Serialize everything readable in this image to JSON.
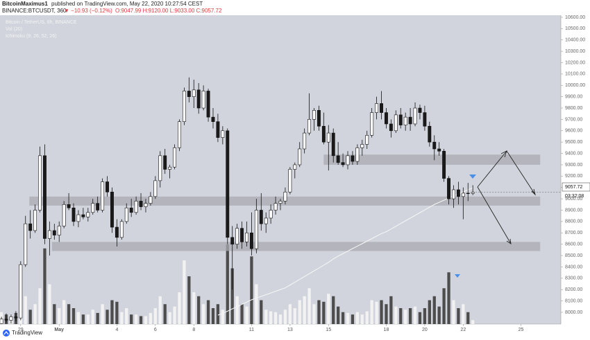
{
  "header": {
    "author": "BitcoinMaximus1",
    "published": "published on TradingView.com, May 22, 2020 10:27:54 CEST",
    "symbol": "BINANCE:BTCUSDT, 360",
    "change": "▼ −10.93 (−0.12%)",
    "ohlc": "O:9047.99 H:9120.00 L:9033.00 C:9057.72"
  },
  "footer": {
    "brand": "TradingView"
  },
  "chart_data": {
    "type": "candlestick",
    "legend": [
      "Bitcoin / TetherUS, 6h, BINANCE",
      "Vol (20)",
      "Ichimoku (9, 26, 52, 26)"
    ],
    "countdown": "03:32:08",
    "up_color": "#ffffff",
    "down_color": "#1a1a1a",
    "volume_up_color": "#f2f2f2",
    "volume_down_color": "#4d4d4d",
    "line_color": "#f5f5f5",
    "zone_color": "#a9abb1",
    "background": "#d1d4dc",
    "xlim": [
      -0.3,
      116.3
    ],
    "ylim": [
      7896,
      10618
    ],
    "vlim": [
      0,
      100
    ],
    "xticks": [
      {
        "value": 4,
        "label": "29"
      },
      {
        "value": 12,
        "label": "May"
      },
      {
        "value": 24,
        "label": "4"
      },
      {
        "value": 32,
        "label": "6"
      },
      {
        "value": 40,
        "label": "8"
      },
      {
        "value": 52,
        "label": "11"
      },
      {
        "value": 60,
        "label": "13"
      },
      {
        "value": 68,
        "label": "15"
      },
      {
        "value": 80,
        "label": "18"
      },
      {
        "value": 88,
        "label": "20"
      },
      {
        "value": 96,
        "label": "22"
      },
      {
        "value": 108,
        "label": "25"
      }
    ],
    "yticks": [
      {
        "value": 8000,
        "label": "8000.00"
      },
      {
        "value": 8100,
        "label": "8100.00"
      },
      {
        "value": 8200,
        "label": "8200.00"
      },
      {
        "value": 8300,
        "label": "8300.00"
      },
      {
        "value": 8400,
        "label": "8400.00"
      },
      {
        "value": 8500,
        "label": "8500.00"
      },
      {
        "value": 8600,
        "label": "8600.00"
      },
      {
        "value": 8700,
        "label": "8700.00"
      },
      {
        "value": 8800,
        "label": "8800.00"
      },
      {
        "value": 8900,
        "label": "8900.00"
      },
      {
        "value": 9000,
        "label": "9000.00"
      },
      {
        "value": 9100,
        "label": "9100.00"
      },
      {
        "value": 9200,
        "label": "9200.00"
      },
      {
        "value": 9300,
        "label": "9300.00"
      },
      {
        "value": 9400,
        "label": "9400.00"
      },
      {
        "value": 9500,
        "label": "9500.00"
      },
      {
        "value": 9600,
        "label": "9600.00"
      },
      {
        "value": 9700,
        "label": "9700.00"
      },
      {
        "value": 9800,
        "label": "9800.00"
      },
      {
        "value": 9900,
        "label": "9900.00"
      },
      {
        "value": 10000,
        "label": "10000.00"
      },
      {
        "value": 10100,
        "label": "10100.00"
      },
      {
        "value": 10200,
        "label": "10200.00"
      },
      {
        "value": 10300,
        "label": "10300.00"
      },
      {
        "value": 10400,
        "label": "10400.00"
      },
      {
        "value": 10500,
        "label": "10500.00"
      },
      {
        "value": 10600,
        "label": "10600.00"
      }
    ],
    "zones": [
      {
        "from": 9300,
        "to": 9390,
        "start": 67,
        "end": 112
      },
      {
        "from": 8940,
        "to": 9020,
        "start": 5.8,
        "end": 112
      },
      {
        "from": 8540,
        "to": 8620,
        "start": 10.5,
        "end": 112
      }
    ],
    "ohlc": [
      [
        7900,
        7960,
        7880,
        7940
      ],
      [
        7940,
        7990,
        7910,
        7930
      ],
      [
        7930,
        7980,
        7900,
        7960
      ],
      [
        7960,
        8010,
        7920,
        7950
      ],
      [
        7950,
        8450,
        7930,
        8420
      ],
      [
        8420,
        8850,
        8400,
        8780
      ],
      [
        8780,
        8900,
        8650,
        8720
      ],
      [
        8720,
        8950,
        8700,
        8900
      ],
      [
        8900,
        9460,
        8880,
        9380
      ],
      [
        9380,
        9480,
        8600,
        8650
      ],
      [
        8650,
        8800,
        8500,
        8720
      ],
      [
        8720,
        8780,
        8640,
        8680
      ],
      [
        8680,
        8800,
        8620,
        8760
      ],
      [
        8760,
        8980,
        8740,
        8950
      ],
      [
        8950,
        9050,
        8900,
        8920
      ],
      [
        8920,
        8960,
        8760,
        8800
      ],
      [
        8800,
        8900,
        8750,
        8860
      ],
      [
        8860,
        8920,
        8820,
        8840
      ],
      [
        8840,
        8920,
        8800,
        8880
      ],
      [
        8880,
        9000,
        8860,
        8960
      ],
      [
        8960,
        9020,
        8880,
        8900
      ],
      [
        8900,
        9180,
        8880,
        9150
      ],
      [
        9150,
        9200,
        9020,
        9060
      ],
      [
        9060,
        9100,
        8700,
        8750
      ],
      [
        8750,
        8820,
        8580,
        8660
      ],
      [
        8660,
        8820,
        8640,
        8800
      ],
      [
        8800,
        8960,
        8780,
        8920
      ],
      [
        8920,
        9000,
        8840,
        8880
      ],
      [
        8880,
        9020,
        8860,
        8980
      ],
      [
        8980,
        9050,
        8900,
        8930
      ],
      [
        8930,
        9000,
        8880,
        8960
      ],
      [
        8960,
        9060,
        8940,
        9020
      ],
      [
        9020,
        9200,
        9000,
        9160
      ],
      [
        9160,
        9420,
        9100,
        9380
      ],
      [
        9380,
        9440,
        9220,
        9260
      ],
      [
        9260,
        9300,
        9180,
        9280
      ],
      [
        9280,
        9480,
        9260,
        9450
      ],
      [
        9450,
        9700,
        9420,
        9680
      ],
      [
        9680,
        9980,
        9650,
        9950
      ],
      [
        9950,
        10070,
        9850,
        9900
      ],
      [
        9900,
        10050,
        9800,
        9960
      ],
      [
        9960,
        10020,
        9750,
        9800
      ],
      [
        9800,
        10000,
        9780,
        9950
      ],
      [
        9950,
        9970,
        9680,
        9720
      ],
      [
        9720,
        9800,
        9620,
        9680
      ],
      [
        9680,
        9750,
        9500,
        9540
      ],
      [
        9540,
        9640,
        9480,
        9600
      ],
      [
        9600,
        9620,
        8600,
        8660
      ],
      [
        8660,
        8760,
        8200,
        8600
      ],
      [
        8600,
        8780,
        8560,
        8740
      ],
      [
        8740,
        8800,
        8560,
        8620
      ],
      [
        8620,
        8800,
        8580,
        8700
      ],
      [
        8700,
        8880,
        8500,
        8560
      ],
      [
        8560,
        9000,
        8520,
        8900
      ],
      [
        8900,
        9050,
        8720,
        8780
      ],
      [
        8780,
        8880,
        8700,
        8830
      ],
      [
        8830,
        8950,
        8780,
        8900
      ],
      [
        8900,
        9020,
        8860,
        8960
      ],
      [
        8960,
        9000,
        8900,
        8980
      ],
      [
        8980,
        9100,
        8950,
        9060
      ],
      [
        9060,
        9280,
        9040,
        9260
      ],
      [
        9260,
        9320,
        9180,
        9300
      ],
      [
        9300,
        9500,
        9280,
        9440
      ],
      [
        9440,
        9620,
        9400,
        9580
      ],
      [
        9580,
        9930,
        9560,
        9700
      ],
      [
        9700,
        9800,
        9600,
        9780
      ],
      [
        9780,
        9820,
        9600,
        9640
      ],
      [
        9640,
        9760,
        9480,
        9500
      ],
      [
        9500,
        9650,
        9250,
        9580
      ],
      [
        9580,
        9620,
        9320,
        9380
      ],
      [
        9380,
        9500,
        9300,
        9320
      ],
      [
        9320,
        9400,
        9280,
        9300
      ],
      [
        9300,
        9420,
        9260,
        9380
      ],
      [
        9380,
        9420,
        9300,
        9330
      ],
      [
        9330,
        9480,
        9300,
        9450
      ],
      [
        9450,
        9520,
        9380,
        9480
      ],
      [
        9480,
        9600,
        9440,
        9560
      ],
      [
        9560,
        9800,
        9540,
        9760
      ],
      [
        9760,
        9900,
        9700,
        9840
      ],
      [
        9840,
        9950,
        9700,
        9760
      ],
      [
        9760,
        9800,
        9620,
        9660
      ],
      [
        9660,
        9700,
        9540,
        9600
      ],
      [
        9600,
        9780,
        9580,
        9740
      ],
      [
        9740,
        9800,
        9620,
        9650
      ],
      [
        9650,
        9760,
        9600,
        9720
      ],
      [
        9720,
        9800,
        9600,
        9660
      ],
      [
        9660,
        9850,
        9640,
        9800
      ],
      [
        9800,
        9830,
        9700,
        9760
      ],
      [
        9760,
        9820,
        9600,
        9640
      ],
      [
        9640,
        9680,
        9460,
        9500
      ],
      [
        9500,
        9560,
        9340,
        9440
      ],
      [
        9440,
        9500,
        9380,
        9420
      ],
      [
        9420,
        9440,
        9150,
        9180
      ],
      [
        9180,
        9200,
        8950,
        9000
      ],
      [
        9000,
        9120,
        8920,
        9080
      ],
      [
        9080,
        9150,
        8950,
        9020
      ],
      [
        9020,
        9100,
        8820,
        9050
      ],
      [
        9050,
        9140,
        8980,
        9047.99
      ],
      [
        9047.99,
        9120,
        9033,
        9057.72
      ]
    ],
    "volume": [
      15,
      12,
      10,
      14,
      20,
      35,
      18,
      25,
      45,
      95,
      50,
      25,
      20,
      30,
      25,
      20,
      15,
      12,
      12,
      18,
      14,
      25,
      18,
      30,
      28,
      15,
      20,
      12,
      12,
      10,
      10,
      14,
      20,
      35,
      25,
      15,
      22,
      40,
      80,
      60,
      40,
      35,
      25,
      30,
      20,
      25,
      18,
      100,
      70,
      35,
      25,
      22,
      85,
      50,
      30,
      18,
      16,
      15,
      12,
      18,
      25,
      20,
      30,
      35,
      45,
      25,
      30,
      28,
      38,
      35,
      22,
      15,
      14,
      12,
      15,
      12,
      16,
      30,
      28,
      30,
      25,
      35,
      22,
      20,
      18,
      20,
      22,
      15,
      20,
      30,
      35,
      22,
      45,
      65,
      30,
      20,
      25,
      15,
      5
    ],
    "line": [
      null,
      null,
      null,
      null,
      null,
      null,
      null,
      null,
      null,
      null,
      null,
      null,
      null,
      null,
      null,
      null,
      null,
      null,
      null,
      null,
      null,
      null,
      null,
      null,
      null,
      null,
      null,
      null,
      null,
      null,
      null,
      null,
      null,
      null,
      null,
      null,
      null,
      null,
      null,
      null,
      null,
      null,
      null,
      null,
      null,
      7975,
      7990,
      8010,
      8030,
      8050,
      8070,
      8090,
      8110,
      8125,
      8140,
      8155,
      8170,
      8185,
      8200,
      8215,
      8240,
      8265,
      8290,
      8315,
      8340,
      8365,
      8390,
      8415,
      8440,
      8470,
      8495,
      8517,
      8539,
      8561,
      8583,
      8605,
      8627,
      8649,
      8671,
      8693,
      8710,
      8734,
      8758,
      8782,
      8806,
      8830,
      8854,
      8878,
      8902,
      8926,
      8950,
      8969,
      8988,
      9007,
      9025,
      9043,
      9061,
      9080,
      9095
    ]
  }
}
